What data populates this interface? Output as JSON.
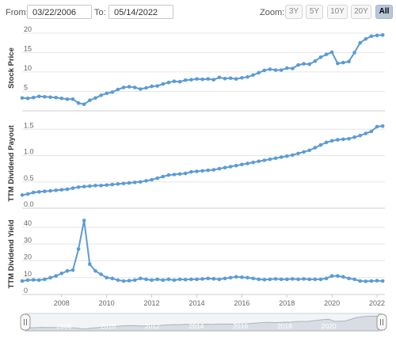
{
  "range_selector": {
    "from_label": "From:",
    "from_value": "03/22/2006",
    "to_label": "To:",
    "to_value": "05/14/2022",
    "zoom_label": "Zoom:",
    "zoom_buttons": [
      "3Y",
      "5Y",
      "10Y",
      "20Y",
      "All"
    ],
    "active_zoom": "All"
  },
  "colors": {
    "series": "#5b9bd5",
    "grid": "#e6e6e6",
    "navigator_fill": "#d9dde3"
  },
  "chart_data": [
    {
      "type": "line",
      "ylabel": "Stock Price",
      "ylim": [
        0,
        22
      ],
      "yticks": [
        0,
        5,
        10,
        15,
        20
      ],
      "ytick_labels": [
        "",
        "5",
        "10",
        "15",
        "20"
      ],
      "series": [
        {
          "x": [
            2006.25,
            2006.5,
            2006.75,
            2007.0,
            2007.25,
            2007.5,
            2007.75,
            2008.0,
            2008.25,
            2008.5,
            2008.75,
            2009.0,
            2009.25,
            2009.5,
            2009.75,
            2010.0,
            2010.25,
            2010.5,
            2010.75,
            2011.0,
            2011.25,
            2011.5,
            2011.75,
            2012.0,
            2012.25,
            2012.5,
            2012.75,
            2013.0,
            2013.25,
            2013.5,
            2013.75,
            2014.0,
            2014.25,
            2014.5,
            2014.75,
            2015.0,
            2015.25,
            2015.5,
            2015.75,
            2016.0,
            2016.25,
            2016.5,
            2016.75,
            2017.0,
            2017.25,
            2017.5,
            2017.75,
            2018.0,
            2018.25,
            2018.5,
            2018.75,
            2019.0,
            2019.25,
            2019.5,
            2019.75,
            2020.0,
            2020.25,
            2020.5,
            2020.75,
            2021.0,
            2021.25,
            2021.5,
            2021.75,
            2022.0,
            2022.25
          ],
          "y": [
            3.3,
            3.2,
            3.4,
            3.7,
            3.6,
            3.5,
            3.4,
            3.2,
            3.0,
            3.0,
            2.0,
            1.7,
            2.7,
            3.3,
            4.0,
            4.5,
            4.8,
            5.5,
            6.0,
            6.2,
            6.0,
            5.6,
            5.9,
            6.3,
            6.4,
            6.9,
            7.3,
            7.6,
            7.5,
            7.9,
            8.0,
            8.2,
            8.1,
            8.2,
            8.0,
            8.6,
            8.3,
            8.4,
            8.2,
            8.5,
            8.7,
            9.2,
            9.8,
            10.4,
            10.7,
            10.5,
            10.5,
            11.0,
            10.9,
            11.8,
            12.1,
            12.0,
            12.8,
            13.8,
            14.5,
            15.1,
            12.2,
            12.4,
            12.7,
            15.0,
            17.5,
            18.5,
            19.2,
            19.4,
            19.5
          ]
        }
      ]
    },
    {
      "type": "line",
      "ylabel": "TTM Dividend Payout",
      "ylim": [
        0,
        1.7
      ],
      "yticks": [
        0,
        0.5,
        1.0,
        1.5
      ],
      "ytick_labels": [
        "0.0",
        "0.5",
        "1.0",
        "1.5"
      ],
      "series": [
        {
          "x": [
            2006.25,
            2006.5,
            2006.75,
            2007.0,
            2007.25,
            2007.5,
            2007.75,
            2008.0,
            2008.25,
            2008.5,
            2008.75,
            2009.0,
            2009.25,
            2009.5,
            2009.75,
            2010.0,
            2010.25,
            2010.5,
            2010.75,
            2011.0,
            2011.25,
            2011.5,
            2011.75,
            2012.0,
            2012.25,
            2012.5,
            2012.75,
            2013.0,
            2013.25,
            2013.5,
            2013.75,
            2014.0,
            2014.25,
            2014.5,
            2014.75,
            2015.0,
            2015.25,
            2015.5,
            2015.75,
            2016.0,
            2016.25,
            2016.5,
            2016.75,
            2017.0,
            2017.25,
            2017.5,
            2017.75,
            2018.0,
            2018.25,
            2018.5,
            2018.75,
            2019.0,
            2019.25,
            2019.5,
            2019.75,
            2020.0,
            2020.25,
            2020.5,
            2020.75,
            2021.0,
            2021.25,
            2021.5,
            2021.75,
            2022.0,
            2022.25
          ],
          "y": [
            0.25,
            0.27,
            0.3,
            0.31,
            0.32,
            0.33,
            0.34,
            0.35,
            0.36,
            0.38,
            0.4,
            0.41,
            0.42,
            0.43,
            0.43,
            0.44,
            0.45,
            0.46,
            0.47,
            0.48,
            0.49,
            0.5,
            0.52,
            0.54,
            0.57,
            0.6,
            0.63,
            0.64,
            0.65,
            0.66,
            0.69,
            0.7,
            0.71,
            0.72,
            0.73,
            0.75,
            0.77,
            0.79,
            0.81,
            0.83,
            0.85,
            0.87,
            0.89,
            0.91,
            0.93,
            0.95,
            0.97,
            0.99,
            1.01,
            1.04,
            1.07,
            1.1,
            1.15,
            1.2,
            1.25,
            1.28,
            1.3,
            1.31,
            1.32,
            1.35,
            1.38,
            1.42,
            1.46,
            1.55,
            1.56
          ]
        }
      ]
    },
    {
      "type": "line",
      "ylabel": "TTM Dividend Yield",
      "ylim": [
        0,
        48
      ],
      "yticks": [
        0,
        10,
        20,
        30,
        40
      ],
      "ytick_labels": [
        "0",
        "10",
        "20",
        "30",
        "40"
      ],
      "xticks": [
        2008,
        2010,
        2012,
        2014,
        2016,
        2018,
        2020,
        2022
      ],
      "xtick_labels": [
        "2008",
        "2010",
        "2012",
        "2014",
        "2016",
        "2018",
        "2020",
        "2022"
      ],
      "series": [
        {
          "x": [
            2006.25,
            2006.5,
            2006.75,
            2007.0,
            2007.25,
            2007.5,
            2007.75,
            2008.0,
            2008.25,
            2008.5,
            2008.75,
            2009.0,
            2009.25,
            2009.5,
            2009.75,
            2010.0,
            2010.25,
            2010.5,
            2010.75,
            2011.0,
            2011.25,
            2011.5,
            2011.75,
            2012.0,
            2012.25,
            2012.5,
            2012.75,
            2013.0,
            2013.25,
            2013.5,
            2013.75,
            2014.0,
            2014.25,
            2014.5,
            2014.75,
            2015.0,
            2015.25,
            2015.5,
            2015.75,
            2016.0,
            2016.25,
            2016.5,
            2016.75,
            2017.0,
            2017.25,
            2017.5,
            2017.75,
            2018.0,
            2018.25,
            2018.5,
            2018.75,
            2019.0,
            2019.25,
            2019.5,
            2019.75,
            2020.0,
            2020.25,
            2020.5,
            2020.75,
            2021.0,
            2021.25,
            2021.5,
            2021.75,
            2022.0,
            2022.25
          ],
          "y": [
            8.0,
            8.5,
            8.7,
            8.5,
            9.0,
            10.0,
            11.0,
            12.5,
            14.0,
            14.5,
            27.0,
            44.0,
            18.0,
            14.0,
            12.0,
            10.0,
            9.5,
            8.5,
            8.0,
            8.2,
            8.5,
            9.5,
            9.0,
            8.5,
            9.0,
            8.5,
            9.0,
            8.5,
            9.0,
            8.8,
            9.0,
            9.0,
            9.2,
            9.5,
            9.3,
            9.0,
            9.5,
            10.0,
            10.5,
            10.2,
            10.0,
            9.5,
            9.0,
            8.8,
            9.0,
            9.2,
            9.0,
            9.0,
            9.2,
            9.0,
            9.2,
            9.0,
            9.0,
            9.0,
            9.5,
            11.0,
            11.0,
            10.5,
            9.5,
            9.0,
            8.0,
            7.8,
            8.0,
            8.2,
            8.0
          ]
        }
      ]
    }
  ],
  "navigator": {
    "xlim": [
      2006.25,
      2022.4
    ],
    "xticks": [
      2008,
      2010,
      2012,
      2014,
      2016,
      2018,
      2020
    ],
    "xtick_labels": [
      "2008",
      "2010",
      "2012",
      "2014",
      "2016",
      "2018",
      "2020"
    ],
    "handle_icon": "grip-lines"
  }
}
